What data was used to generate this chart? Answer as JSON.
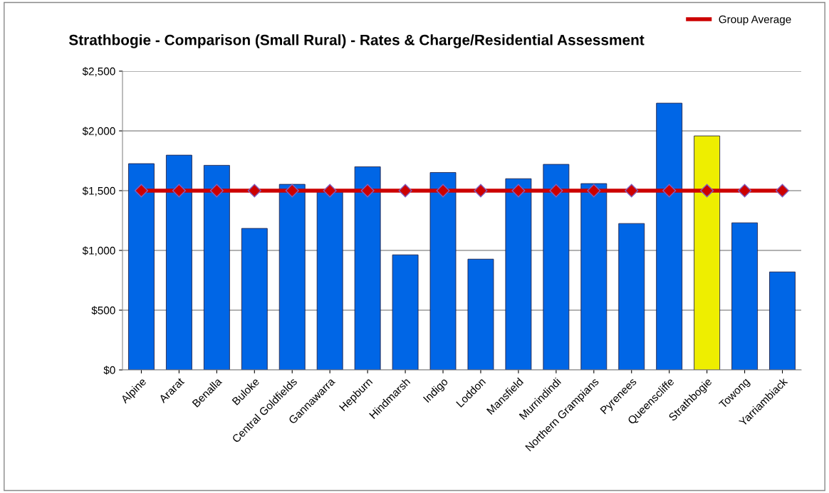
{
  "chart_data": {
    "type": "bar",
    "title": "Strathbogie - Comparison (Small Rural) - Rates & Charge/Residential Assessment",
    "categories": [
      "Alpine",
      "Ararat",
      "Benalla",
      "Buloke",
      "Central Goldfields",
      "Gannawarra",
      "Hepburn",
      "Hindmarsh",
      "Indigo",
      "Loddon",
      "Mansfield",
      "Murrindindi",
      "Northern Grampians",
      "Pyrenees",
      "Queenscliffe",
      "Strathbogie",
      "Towong",
      "Yarriambiack"
    ],
    "series": [
      {
        "colors": [
          "#0066e6",
          "#0066e6",
          "#0066e6",
          "#0066e6",
          "#0066e6",
          "#0066e6",
          "#0066e6",
          "#0066e6",
          "#0066e6",
          "#0066e6",
          "#0066e6",
          "#0066e6",
          "#0066e6",
          "#0066e6",
          "#0066e6",
          "#eeee00",
          "#0066e6",
          "#0066e6"
        ],
        "values": [
          1726,
          1797,
          1712,
          1184,
          1553,
          1495,
          1700,
          963,
          1652,
          927,
          1600,
          1720,
          1559,
          1225,
          2232,
          1958,
          1231,
          820
        ]
      },
      {
        "type": "line",
        "name": "Group Average",
        "color": "#cc0000",
        "marker": "diamond",
        "values": [
          1500,
          1500,
          1500,
          1500,
          1500,
          1500,
          1500,
          1500,
          1500,
          1500,
          1500,
          1500,
          1500,
          1500,
          1500,
          1500,
          1500,
          1500
        ]
      }
    ],
    "ylim": [
      0,
      2500
    ],
    "yticks": [
      {
        "value": 0,
        "label": "$0"
      },
      {
        "value": 500,
        "label": "$500"
      },
      {
        "value": 1000,
        "label": "$1,000"
      },
      {
        "value": 1500,
        "label": "$1,500"
      },
      {
        "value": 2000,
        "label": "$2,000"
      },
      {
        "value": 2500,
        "label": "$2,500"
      }
    ],
    "grid": "y",
    "legend": "top right"
  }
}
